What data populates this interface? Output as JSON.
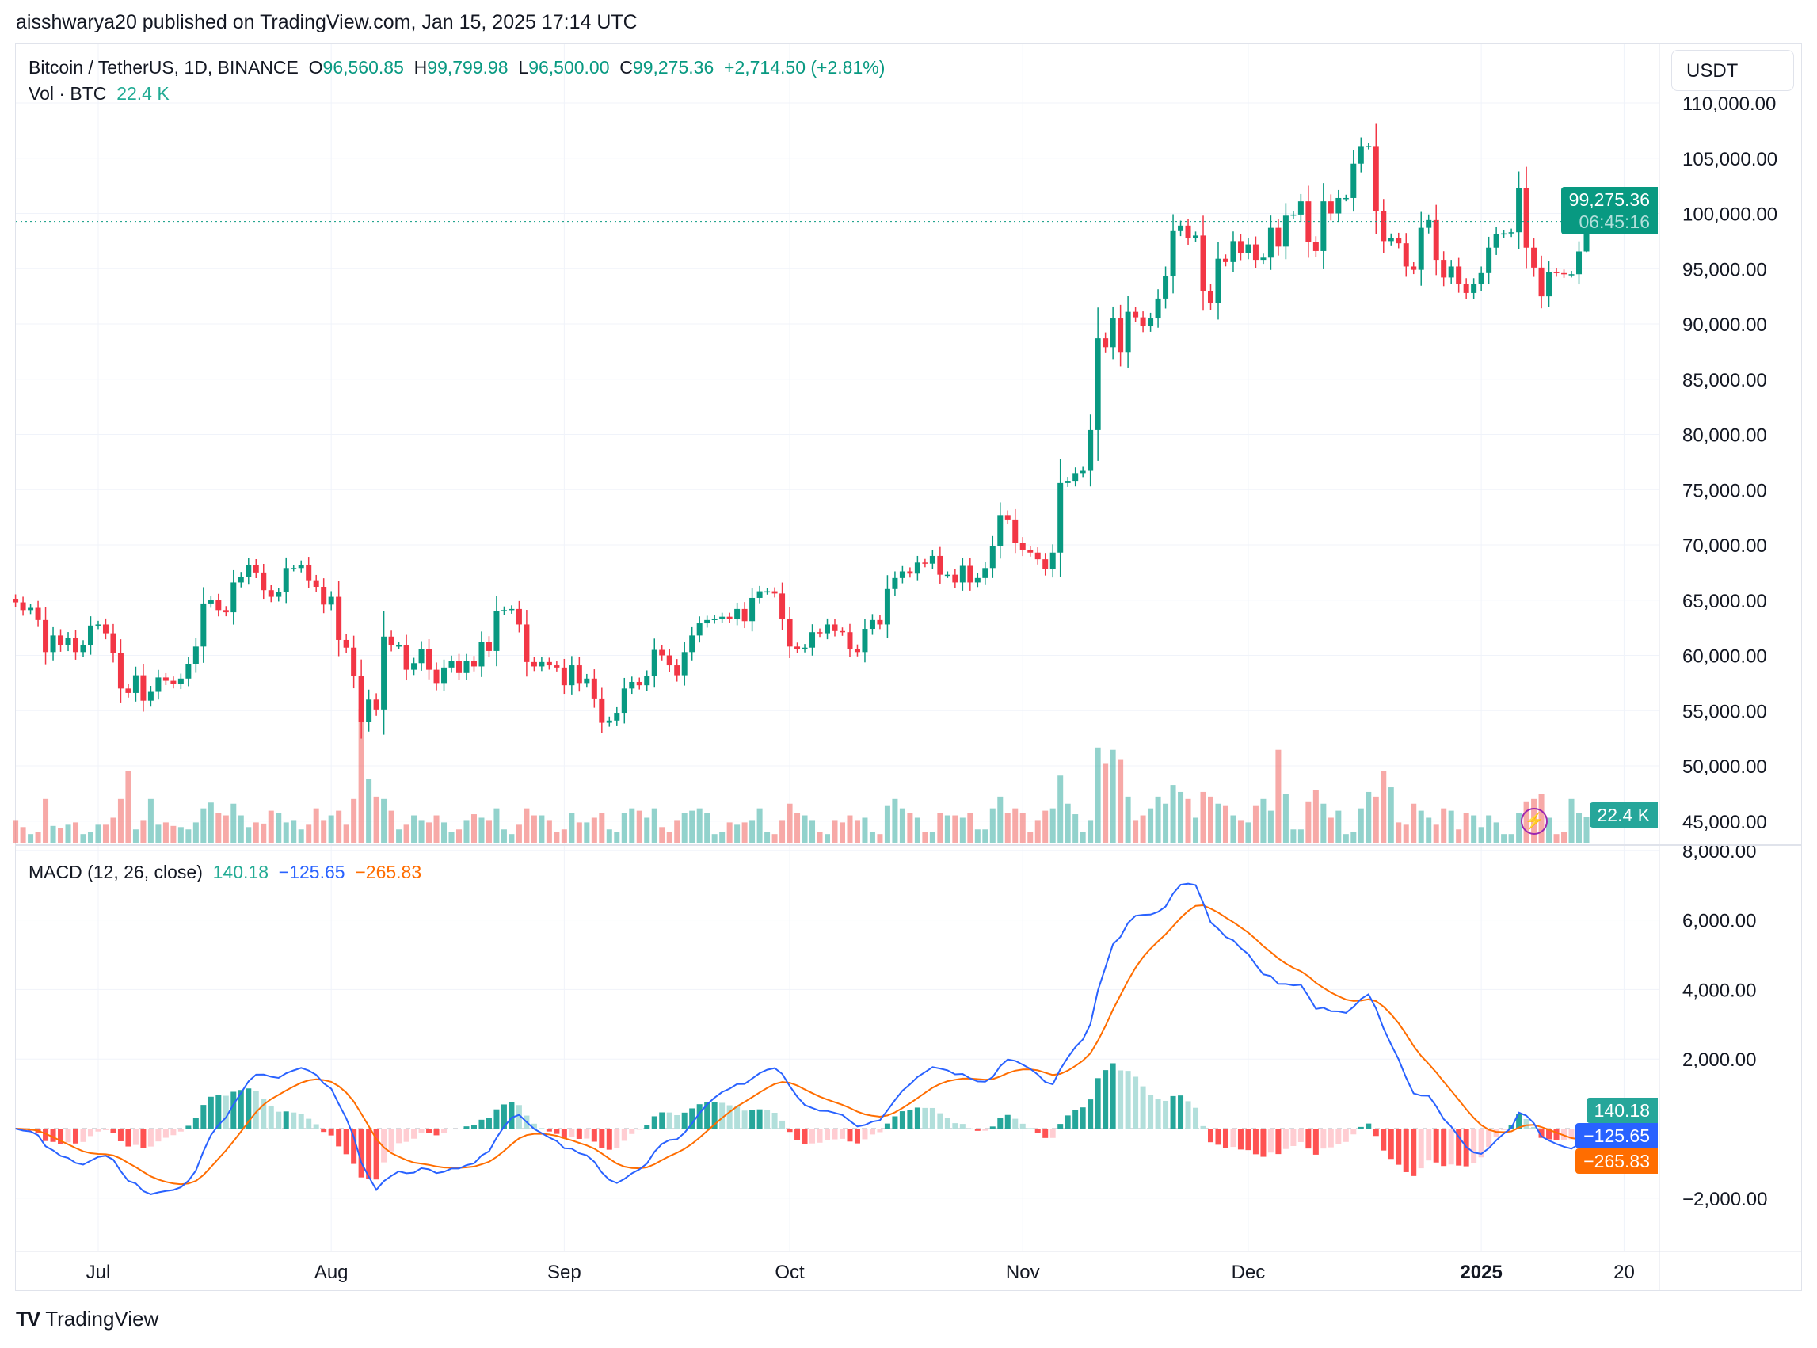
{
  "publisher": "aisshwarya20 published on TradingView.com, Jan 15, 2025 17:14 UTC",
  "header": {
    "symbol": "Bitcoin / TetherUS, 1D, BINANCE",
    "o_label": "O",
    "o": "96,560.85",
    "h_label": "H",
    "h": "99,799.98",
    "l_label": "L",
    "l": "96,500.00",
    "c_label": "C",
    "c": "99,275.36",
    "change": "+2,714.50 (+2.81%)",
    "vol_label": "Vol · BTC",
    "vol": "22.4 K"
  },
  "unit_button": "USDT",
  "price_tag": {
    "price": "99,275.36",
    "countdown": "06:45:16"
  },
  "volume_tag": "22.4 K",
  "macd_legend": {
    "title": "MACD (12, 26, close)",
    "histogram": "140.18",
    "macd": "−125.65",
    "signal": "−265.83"
  },
  "macd_tags": {
    "histogram": "140.18",
    "macd": "−125.65",
    "signal": "−265.83"
  },
  "footer": {
    "brand": "TradingView"
  },
  "colors": {
    "up": "#089981",
    "down": "#F23645",
    "macd": "#2962FF",
    "signal": "#FF6D00",
    "hist_up": "#26A69A",
    "hist_up_weak": "#B2DFDB",
    "hist_down": "#FF5252",
    "hist_down_weak": "#FFCDD2"
  },
  "chart_data": {
    "type": "candlestick",
    "date_range": [
      "2024-06-20",
      "2025-01-15"
    ],
    "interval": "1D",
    "price_axis": {
      "ticks": [
        "110,000.00",
        "105,000.00",
        "100,000.00",
        "95,000.00",
        "90,000.00",
        "85,000.00",
        "80,000.00",
        "75,000.00",
        "70,000.00",
        "65,000.00",
        "60,000.00",
        "55,000.00",
        "50,000.00",
        "45,000.00"
      ],
      "ylim": [
        42000,
        113000
      ]
    },
    "macd_axis": {
      "ticks": [
        "8,000.00",
        "6,000.00",
        "4,000.00",
        "2,000.00",
        "−2,000.00"
      ],
      "ylim": [
        -3000,
        8000
      ]
    },
    "time_axis": [
      {
        "label": "Jul",
        "bold": false
      },
      {
        "label": "Aug",
        "bold": false
      },
      {
        "label": "Sep",
        "bold": false
      },
      {
        "label": "Oct",
        "bold": false
      },
      {
        "label": "Nov",
        "bold": false
      },
      {
        "label": "Dec",
        "bold": false
      },
      {
        "label": "2025",
        "bold": true
      },
      {
        "label": "20",
        "bold": false
      }
    ],
    "last_candle": {
      "open": 96560.85,
      "high": 99799.98,
      "low": 96500.0,
      "close": 99275.36
    },
    "close": [
      64800,
      64100,
      64300,
      63200,
      60300,
      61800,
      60900,
      61600,
      60300,
      60900,
      62700,
      62800,
      62000,
      60200,
      57000,
      56600,
      58200,
      55900,
      56700,
      58000,
      57700,
      57400,
      57900,
      59200,
      60800,
      64700,
      65000,
      64100,
      63900,
      66600,
      67100,
      68200,
      67500,
      65900,
      65300,
      65700,
      67900,
      67900,
      68200,
      66800,
      66200,
      64600,
      65300,
      61400,
      60700,
      58100,
      54000,
      56000,
      55100,
      61700,
      60900,
      60900,
      58700,
      59300,
      60600,
      58700,
      57500,
      58900,
      59500,
      58400,
      59500,
      59000,
      61200,
      60400,
      64000,
      64100,
      64200,
      62800,
      59400,
      59000,
      59400,
      59100,
      58900,
      57300,
      59100,
      57500,
      57900,
      56100,
      53900,
      54100,
      54800,
      57000,
      57600,
      57300,
      58100,
      60500,
      60000,
      59100,
      58200,
      60300,
      61800,
      62900,
      63200,
      63300,
      63500,
      63300,
      64200,
      63100,
      65200,
      65800,
      65800,
      65600,
      63300,
      60800,
      60600,
      60700,
      62100,
      62000,
      62800,
      62200,
      62100,
      60600,
      60300,
      62400,
      63200,
      62800,
      66000,
      67000,
      67600,
      67400,
      68400,
      68300,
      69000,
      67300,
      67300,
      66600,
      68100,
      66600,
      67000,
      67900,
      69900,
      72700,
      72300,
      70200,
      69500,
      69300,
      68700,
      67800,
      69300,
      75600,
      75800,
      76500,
      76700,
      80400,
      88700,
      87900,
      90500,
      87400,
      91100,
      90600,
      89800,
      90500,
      92300,
      94300,
      98400,
      98900,
      97800,
      98000,
      93000,
      91900,
      95900,
      95600,
      97500,
      96400,
      97200,
      95800,
      96000,
      98700,
      97000,
      99800,
      99900,
      101100,
      97400,
      96600,
      101100,
      100000,
      101400,
      101400,
      104500,
      106100,
      106100,
      100200,
      97500,
      97800,
      97300,
      95200,
      94900,
      98700,
      99400,
      95800,
      94200,
      95200,
      93600,
      92800,
      93600,
      94600,
      96900,
      98100,
      98200,
      98300,
      102300,
      96900,
      95100,
      92500,
      94700,
      94600,
      94500,
      94500,
      96560.85,
      99275.36
    ],
    "volume_k_btc": [
      20,
      14,
      8,
      10,
      38,
      15,
      13,
      16,
      18,
      8,
      10,
      16,
      16,
      22,
      38,
      62,
      12,
      20,
      38,
      16,
      18,
      15,
      14,
      12,
      18,
      30,
      35,
      26,
      24,
      34,
      24,
      14,
      18,
      17,
      28,
      26,
      18,
      20,
      12,
      16,
      30,
      20,
      24,
      28,
      16,
      38,
      115,
      55,
      40,
      38,
      28,
      12,
      16,
      24,
      20,
      18,
      24,
      18,
      10,
      12,
      20,
      25,
      22,
      20,
      30,
      12,
      8,
      16,
      30,
      24,
      24,
      20,
      10,
      12,
      26,
      18,
      18,
      22,
      26,
      12,
      10,
      26,
      30,
      28,
      22,
      30,
      14,
      10,
      20,
      26,
      28,
      30,
      26,
      8,
      10,
      18,
      16,
      18,
      20,
      30,
      10,
      8,
      20,
      34,
      26,
      24,
      20,
      10,
      8,
      20,
      18,
      24,
      20,
      22,
      10,
      8,
      32,
      38,
      30,
      26,
      22,
      10,
      10,
      26,
      24,
      24,
      22,
      26,
      12,
      12,
      30,
      40,
      26,
      30,
      26,
      10,
      20,
      28,
      30,
      58,
      34,
      25,
      10,
      20,
      82,
      68,
      80,
      72,
      40,
      20,
      24,
      30,
      40,
      34,
      50,
      44,
      38,
      22,
      44,
      40,
      34,
      32,
      24,
      20,
      18,
      32,
      38,
      28,
      80,
      42,
      12,
      12,
      36,
      46,
      34,
      22,
      28,
      8,
      10,
      30,
      44,
      40,
      62,
      48,
      18,
      16,
      34,
      28,
      22,
      16,
      30,
      28,
      12,
      26,
      24,
      14,
      24,
      18,
      8,
      8,
      26,
      36,
      38,
      42,
      22,
      8,
      10,
      38,
      26,
      22.4
    ],
    "macd_params": {
      "fast": 12,
      "slow": 26,
      "source": "close",
      "signal": 9
    }
  }
}
